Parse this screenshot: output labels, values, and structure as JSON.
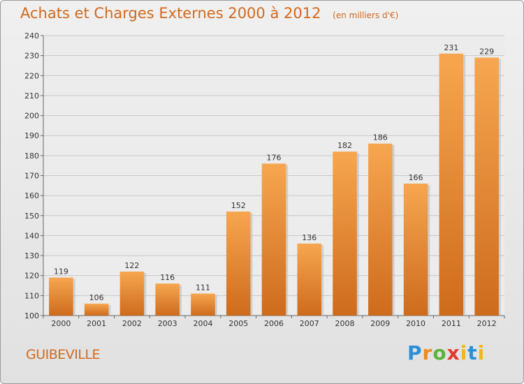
{
  "header": {
    "title": "Achats et Charges Externes 2000 à 2012",
    "subtitle": "(en milliers d'€)"
  },
  "footer": {
    "commune": "GUIBEVILLE",
    "logo": "Proxiti"
  },
  "colors": {
    "accent": "#d2691e",
    "bar_top": "#f7a650",
    "bar_bottom": "#cd6b1c"
  },
  "chart_data": {
    "type": "bar",
    "title": "Achats et Charges Externes 2000 à 2012",
    "subtitle": "(en milliers d'€)",
    "categories": [
      "2000",
      "2001",
      "2002",
      "2003",
      "2004",
      "2005",
      "2006",
      "2007",
      "2008",
      "2009",
      "2010",
      "2011",
      "2012"
    ],
    "values": [
      119,
      106,
      122,
      116,
      111,
      152,
      176,
      136,
      182,
      186,
      166,
      231,
      229
    ],
    "ylim": [
      100,
      240
    ],
    "yticks": [
      100,
      110,
      120,
      130,
      140,
      150,
      160,
      170,
      180,
      190,
      200,
      210,
      220,
      230,
      240
    ],
    "grid": true,
    "legend": "none"
  }
}
